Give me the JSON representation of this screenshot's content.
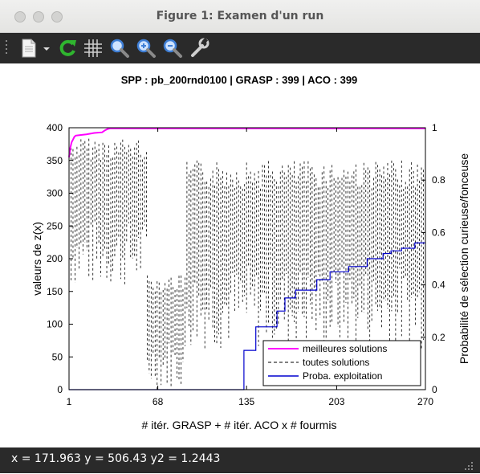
{
  "window": {
    "title": "Figure 1: Examen d'un run"
  },
  "toolbar": {
    "items": [
      {
        "name": "new-document-icon"
      },
      {
        "name": "dropdown-arrow-icon"
      },
      {
        "name": "refresh-icon",
        "color": "#2fb52f"
      },
      {
        "name": "grid-icon"
      },
      {
        "name": "zoom-icon"
      },
      {
        "name": "zoom-in-icon"
      },
      {
        "name": "zoom-out-icon"
      },
      {
        "name": "wrench-icon"
      }
    ]
  },
  "status": {
    "text": "x = 171.963 y = 506.43 y2 = 1.2443"
  },
  "chart_data": {
    "type": "line",
    "title": "SPP : pb_200rnd0100 | GRASP : 399 | ACO : 399",
    "xlabel": "# itér. GRASP + # itér. ACO x # fourmis",
    "ylabel": "valeurs de z(x)",
    "y2label": "Probabilité de sélection curieuse/fonceuse",
    "xlim": [
      1,
      270
    ],
    "ylim": [
      0,
      400
    ],
    "y2lim": [
      0,
      1
    ],
    "xticks": [
      "1",
      "68",
      "135",
      "203",
      "270"
    ],
    "xtick_values": [
      1,
      68,
      135,
      203,
      270
    ],
    "yticks": [
      "0",
      "50",
      "100",
      "150",
      "200",
      "250",
      "300",
      "350",
      "400"
    ],
    "y2ticks": [
      "0",
      "0.2",
      "0.4",
      "0.6",
      "0.8",
      "1"
    ],
    "legend_position": "bottom-right",
    "grid": false,
    "series": [
      {
        "name": "meilleures solutions",
        "color": "#ff00ff",
        "style": "solid",
        "axis": "left",
        "x": [
          1,
          2,
          3,
          4,
          5,
          6,
          10,
          14,
          20,
          26,
          28,
          30,
          32,
          270
        ],
        "y": [
          355,
          370,
          378,
          382,
          386,
          388,
          389,
          390,
          392,
          393,
          396,
          398,
          399,
          399
        ]
      },
      {
        "name": "toutes solutions",
        "color": "#000000",
        "style": "dashed",
        "axis": "left",
        "phases": [
          {
            "x_start": 1,
            "x_end": 60,
            "low": 155,
            "high": 385
          },
          {
            "x_start": 60,
            "x_end": 90,
            "low": 0,
            "high": 175
          },
          {
            "x_start": 90,
            "x_end": 270,
            "low": 60,
            "high": 350
          }
        ]
      },
      {
        "name": "Proba. exploitation",
        "color": "#0000cd",
        "style": "solid",
        "axis": "right",
        "x": [
          1,
          128,
          133,
          142,
          158,
          164,
          172,
          188,
          198,
          212,
          226,
          238,
          244,
          252,
          262,
          270
        ],
        "y": [
          0,
          0,
          0.15,
          0.24,
          0.3,
          0.35,
          0.38,
          0.42,
          0.45,
          0.47,
          0.5,
          0.52,
          0.53,
          0.54,
          0.56,
          0.56
        ]
      }
    ]
  }
}
